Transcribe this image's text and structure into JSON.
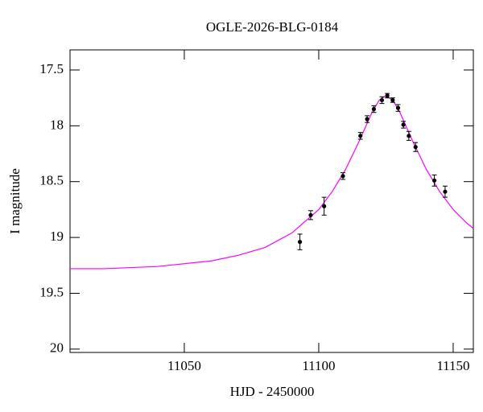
{
  "chart_data": {
    "type": "scatter",
    "title": "OGLE-2026-BLG-0184",
    "xlabel": "HJD - 2450000",
    "ylabel": "I magnitude",
    "xlim": [
      11007.5,
      11157.5
    ],
    "xticks": [
      11050,
      11100,
      11150
    ],
    "ylim": [
      20.03,
      17.32
    ],
    "yticks": [
      17.5,
      18,
      18.5,
      19,
      19.5,
      20
    ],
    "y_inverted": true,
    "points": {
      "color": "#000000",
      "x": [
        11093,
        11097,
        11102,
        11109,
        11115.5,
        11118,
        11120.5,
        11123.5,
        11125.5,
        11127.5,
        11129.5,
        11131.5,
        11133.5,
        11136,
        11143,
        11147
      ],
      "values": [
        19.04,
        18.8,
        18.72,
        18.45,
        18.09,
        17.94,
        17.85,
        17.77,
        17.73,
        17.77,
        17.84,
        17.99,
        18.09,
        18.19,
        18.49,
        18.59
      ],
      "errors": [
        0.07,
        0.04,
        0.08,
        0.03,
        0.03,
        0.03,
        0.03,
        0.03,
        0.02,
        0.02,
        0.03,
        0.03,
        0.04,
        0.04,
        0.05,
        0.05
      ]
    },
    "model": {
      "color": "#ff00ff",
      "x": [
        11007.5,
        11020,
        11040,
        11060,
        11070,
        11080,
        11090,
        11100,
        11105,
        11110,
        11115,
        11120,
        11122.5,
        11125,
        11127.5,
        11130,
        11135,
        11140,
        11145,
        11150,
        11155,
        11157.5
      ],
      "values": [
        19.28,
        19.28,
        19.26,
        19.21,
        19.16,
        19.09,
        18.96,
        18.75,
        18.59,
        18.39,
        18.14,
        17.87,
        17.77,
        17.73,
        17.77,
        17.87,
        18.14,
        18.39,
        18.59,
        18.75,
        18.87,
        18.92
      ]
    }
  }
}
